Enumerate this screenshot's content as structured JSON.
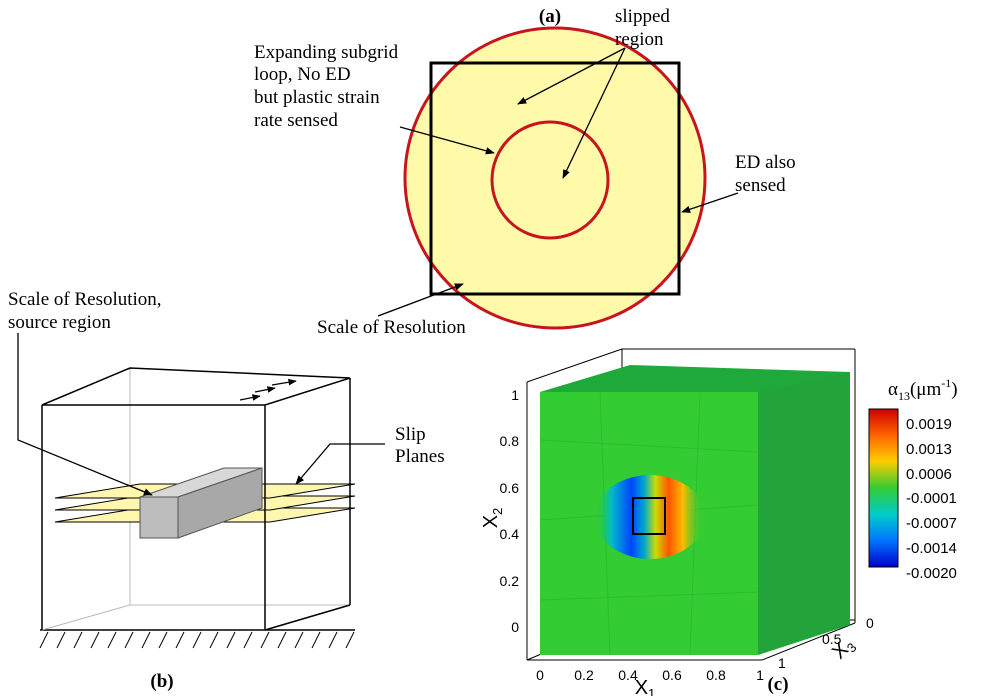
{
  "panel_a": {
    "label": "(a)",
    "slipped": [
      "slipped",
      "region"
    ],
    "expanding": [
      "Expanding subgrid",
      "loop, No ED",
      "but plastic strain",
      "rate sensed"
    ],
    "ed": [
      "ED also",
      "sensed"
    ],
    "scale": "Scale of Resolution"
  },
  "panel_b": {
    "label": "(b)",
    "scale": [
      "Scale of Resolution,",
      "source region"
    ],
    "slip": [
      "Slip",
      "Planes"
    ]
  },
  "panel_c": {
    "label": "(c)",
    "x1": "X",
    "x1_sub": "1",
    "x2": "X",
    "x2_sub": "2",
    "x3": "X",
    "x3_sub": "3",
    "x1_ticks": [
      "0",
      "0.2",
      "0.4",
      "0.6",
      "0.8",
      "1"
    ],
    "x2_ticks": [
      "0",
      "0.2",
      "0.4",
      "0.6",
      "0.8",
      "1"
    ],
    "x3_ticks": [
      "0",
      "0.5",
      "1"
    ],
    "legend_symbol": "α",
    "legend_sub": "13",
    "legend_unit": "(μm",
    "legend_sup": "-1",
    "legend_close": ")",
    "legend_values": [
      "0.0019",
      "0.0013",
      "0.0006",
      "-0.0001",
      "-0.0007",
      "-0.0014",
      "-0.0020"
    ],
    "colormap": [
      "#cc0000",
      "#ff6600",
      "#ffcc00",
      "#33cc33",
      "#00cccc",
      "#0077ff",
      "#0000cc"
    ]
  }
}
